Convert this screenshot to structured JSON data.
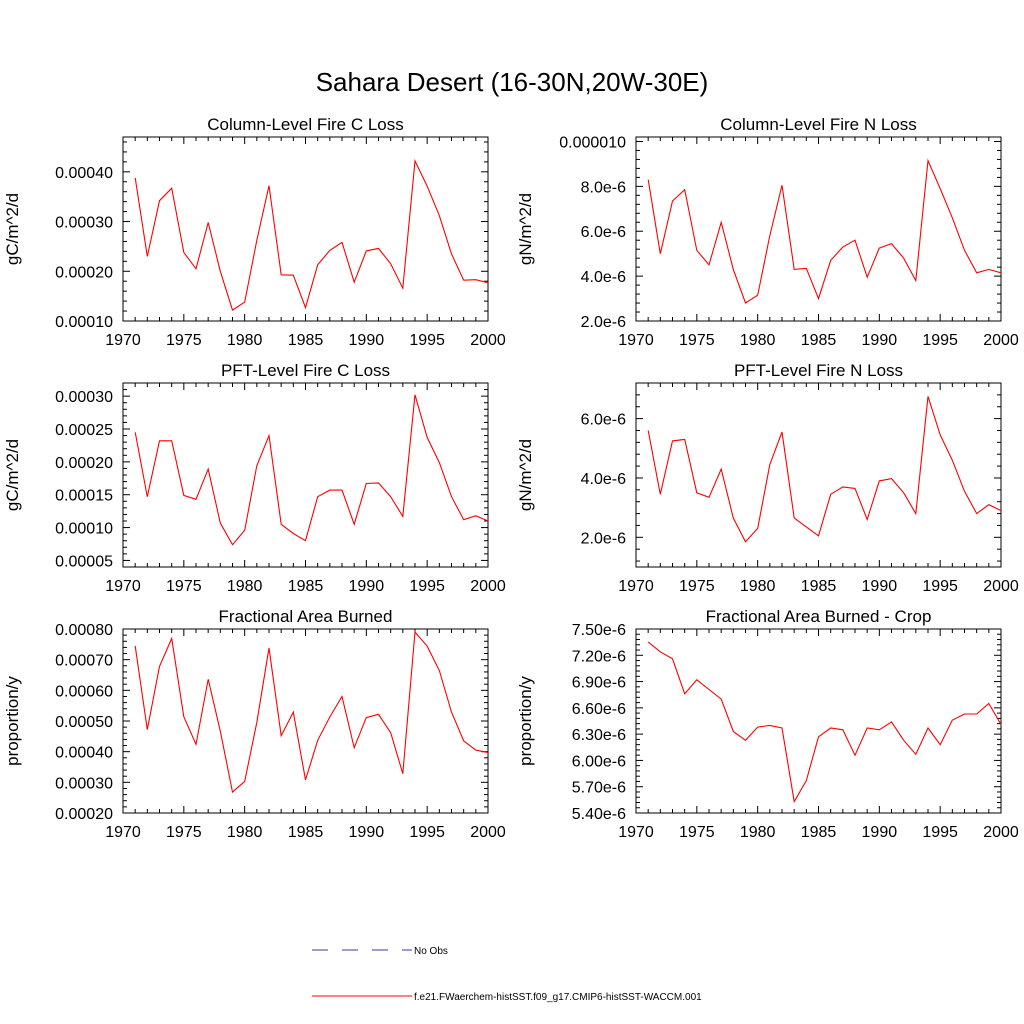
{
  "title": "Sahara Desert (16-30N,20W-30E)",
  "line_color": "#ff0000",
  "obs_color": "#3a3aa0",
  "legend": {
    "obs_label": "No Obs",
    "model_label": "f.e21.FWaerchem-histSST.f09_g17.CMIP6-histSST-WACCM.001"
  },
  "chart_data": [
    {
      "type": "line",
      "title": "Column-Level Fire C Loss",
      "ylabel": "gC/m^2/d",
      "xlim": [
        1970,
        2000
      ],
      "ylim": [
        0.0001,
        0.00047
      ],
      "xticks": [
        1970,
        1975,
        1980,
        1985,
        1990,
        1995,
        2000
      ],
      "yticks": [
        0.0001,
        0.0002,
        0.0003,
        0.0004
      ],
      "ytick_labels": [
        "0.00010",
        "0.00020",
        "0.00030",
        "0.00040"
      ],
      "x": [
        1971,
        1972,
        1973,
        1974,
        1975,
        1976,
        1977,
        1978,
        1979,
        1980,
        1981,
        1982,
        1983,
        1984,
        1985,
        1986,
        1987,
        1988,
        1989,
        1990,
        1991,
        1992,
        1993,
        1994,
        1995,
        1996,
        1997,
        1998,
        1999,
        2000
      ],
      "series": [
        {
          "values": [
            0.000388,
            0.00023,
            0.000342,
            0.000367,
            0.000238,
            0.000205,
            0.000298,
            0.0002,
            0.000122,
            0.000138,
            0.000262,
            0.000372,
            0.000193,
            0.000192,
            0.000127,
            0.000213,
            0.000242,
            0.000258,
            0.000178,
            0.000241,
            0.000246,
            0.000215,
            0.000166,
            0.000422,
            0.000371,
            0.000312,
            0.000235,
            0.000182,
            0.000183,
            0.000177
          ]
        }
      ]
    },
    {
      "type": "line",
      "title": "Column-Level Fire N Loss",
      "ylabel": "gN/m^2/d",
      "xlim": [
        1970,
        2000
      ],
      "ylim": [
        2e-06,
        1.02e-05
      ],
      "xticks": [
        1970,
        1975,
        1980,
        1985,
        1990,
        1995,
        2000
      ],
      "yticks": [
        2e-06,
        4e-06,
        6e-06,
        8e-06,
        1e-05
      ],
      "ytick_labels": [
        "2.0e-6",
        "4.0e-6",
        "6.0e-6",
        "8.0e-6",
        "0.000010"
      ],
      "x": [
        1971,
        1972,
        1973,
        1974,
        1975,
        1976,
        1977,
        1978,
        1979,
        1980,
        1981,
        1982,
        1983,
        1984,
        1985,
        1986,
        1987,
        1988,
        1989,
        1990,
        1991,
        1992,
        1993,
        1994,
        1995,
        1996,
        1997,
        1998,
        1999,
        2000
      ],
      "series": [
        {
          "values": [
            8.3e-06,
            5e-06,
            7.35e-06,
            7.85e-06,
            5.15e-06,
            4.5e-06,
            6.4e-06,
            4.3e-06,
            2.8e-06,
            3.15e-06,
            5.8e-06,
            8.05e-06,
            4.3e-06,
            4.35e-06,
            3e-06,
            4.7e-06,
            5.3e-06,
            5.6e-06,
            3.95e-06,
            5.25e-06,
            5.45e-06,
            4.8e-06,
            3.8e-06,
            9.15e-06,
            7.9e-06,
            6.6e-06,
            5.15e-06,
            4.15e-06,
            4.3e-06,
            4.15e-06
          ]
        }
      ]
    },
    {
      "type": "line",
      "title": "PFT-Level Fire C Loss",
      "ylabel": "gC/m^2/d",
      "xlim": [
        1970,
        2000
      ],
      "ylim": [
        4e-05,
        0.00032
      ],
      "xticks": [
        1970,
        1975,
        1980,
        1985,
        1990,
        1995,
        2000
      ],
      "yticks": [
        5e-05,
        0.0001,
        0.00015,
        0.0002,
        0.00025,
        0.0003
      ],
      "ytick_labels": [
        "0.00005",
        "0.00010",
        "0.00015",
        "0.00020",
        "0.00025",
        "0.00030"
      ],
      "x": [
        1971,
        1972,
        1973,
        1974,
        1975,
        1976,
        1977,
        1978,
        1979,
        1980,
        1981,
        1982,
        1983,
        1984,
        1985,
        1986,
        1987,
        1988,
        1989,
        1990,
        1991,
        1992,
        1993,
        1994,
        1995,
        1996,
        1997,
        1998,
        1999,
        2000
      ],
      "series": [
        {
          "values": [
            0.000245,
            0.000147,
            0.000232,
            0.000232,
            0.000149,
            0.000143,
            0.000189,
            0.000107,
            7.4e-05,
            9.6e-05,
            0.000194,
            0.00024,
            0.000105,
            9.1e-05,
            8e-05,
            0.000147,
            0.000157,
            0.000157,
            0.000105,
            0.000167,
            0.000168,
            0.000147,
            0.000117,
            0.000302,
            0.000237,
            0.000199,
            0.000147,
            0.000112,
            0.000118,
            0.00011
          ]
        }
      ]
    },
    {
      "type": "line",
      "title": "PFT-Level Fire N Loss",
      "ylabel": "gN/m^2/d",
      "xlim": [
        1970,
        2000
      ],
      "ylim": [
        1e-06,
        7.2e-06
      ],
      "xticks": [
        1970,
        1975,
        1980,
        1985,
        1990,
        1995,
        2000
      ],
      "yticks": [
        2e-06,
        4e-06,
        6e-06
      ],
      "ytick_labels": [
        "2.0e-6",
        "4.0e-6",
        "6.0e-6"
      ],
      "x": [
        1971,
        1972,
        1973,
        1974,
        1975,
        1976,
        1977,
        1978,
        1979,
        1980,
        1981,
        1982,
        1983,
        1984,
        1985,
        1986,
        1987,
        1988,
        1989,
        1990,
        1991,
        1992,
        1993,
        1994,
        1995,
        1996,
        1997,
        1998,
        1999,
        2000
      ],
      "series": [
        {
          "values": [
            5.6e-06,
            3.45e-06,
            5.25e-06,
            5.3e-06,
            3.5e-06,
            3.35e-06,
            4.3e-06,
            2.65e-06,
            1.85e-06,
            2.3e-06,
            4.45e-06,
            5.55e-06,
            2.65e-06,
            2.35e-06,
            2.05e-06,
            3.45e-06,
            3.7e-06,
            3.65e-06,
            2.6e-06,
            3.9e-06,
            3.98e-06,
            3.5e-06,
            2.8e-06,
            6.75e-06,
            5.45e-06,
            4.6e-06,
            3.55e-06,
            2.8e-06,
            3.1e-06,
            2.9e-06
          ]
        }
      ]
    },
    {
      "type": "line",
      "title": "Fractional Area Burned",
      "ylabel": "proportion/y",
      "xlim": [
        1970,
        2000
      ],
      "ylim": [
        0.0002,
        0.0008
      ],
      "xticks": [
        1970,
        1975,
        1980,
        1985,
        1990,
        1995,
        2000
      ],
      "yticks": [
        0.0002,
        0.0003,
        0.0004,
        0.0005,
        0.0006,
        0.0007,
        0.0008
      ],
      "ytick_labels": [
        "0.00020",
        "0.00030",
        "0.00040",
        "0.00050",
        "0.00060",
        "0.00070",
        "0.00080"
      ],
      "x": [
        1971,
        1972,
        1973,
        1974,
        1975,
        1976,
        1977,
        1978,
        1979,
        1980,
        1981,
        1982,
        1983,
        1984,
        1985,
        1986,
        1987,
        1988,
        1989,
        1990,
        1991,
        1992,
        1993,
        1994,
        1995,
        1996,
        1997,
        1998,
        1999,
        2000
      ],
      "series": [
        {
          "values": [
            0.000745,
            0.000472,
            0.000678,
            0.000769,
            0.000514,
            0.000424,
            0.000636,
            0.000467,
            0.000268,
            0.000303,
            0.000495,
            0.000738,
            0.000452,
            0.000529,
            0.000308,
            0.000437,
            0.000513,
            0.00058,
            0.000413,
            0.000511,
            0.000522,
            0.000462,
            0.000328,
            0.00079,
            0.000744,
            0.000665,
            0.000529,
            0.000435,
            0.000405,
            0.000397
          ]
        }
      ]
    },
    {
      "type": "line",
      "title": "Fractional Area Burned - Crop",
      "ylabel": "proportion/y",
      "xlim": [
        1970,
        2000
      ],
      "ylim": [
        5.4e-06,
        7.5e-06
      ],
      "xticks": [
        1970,
        1975,
        1980,
        1985,
        1990,
        1995,
        2000
      ],
      "yticks": [
        5.4e-06,
        5.7e-06,
        6e-06,
        6.3e-06,
        6.6e-06,
        6.9e-06,
        7.2e-06,
        7.5e-06
      ],
      "ytick_labels": [
        "5.40e-6",
        "5.70e-6",
        "6.00e-6",
        "6.30e-6",
        "6.60e-6",
        "6.90e-6",
        "7.20e-6",
        "7.50e-6"
      ],
      "x": [
        1971,
        1972,
        1973,
        1974,
        1975,
        1976,
        1977,
        1978,
        1979,
        1980,
        1981,
        1982,
        1983,
        1984,
        1985,
        1986,
        1987,
        1988,
        1989,
        1990,
        1991,
        1992,
        1993,
        1994,
        1995,
        1996,
        1997,
        1998,
        1999,
        2000
      ],
      "series": [
        {
          "values": [
            7.35e-06,
            7.24e-06,
            7.16e-06,
            6.76e-06,
            6.92e-06,
            6.81e-06,
            6.7e-06,
            6.33e-06,
            6.23e-06,
            6.38e-06,
            6.4e-06,
            6.37e-06,
            5.53e-06,
            5.77e-06,
            6.27e-06,
            6.37e-06,
            6.35e-06,
            6.06e-06,
            6.37e-06,
            6.35e-06,
            6.44e-06,
            6.23e-06,
            6.07e-06,
            6.37e-06,
            6.18e-06,
            6.46e-06,
            6.53e-06,
            6.53e-06,
            6.65e-06,
            6.41e-06
          ]
        }
      ]
    }
  ]
}
